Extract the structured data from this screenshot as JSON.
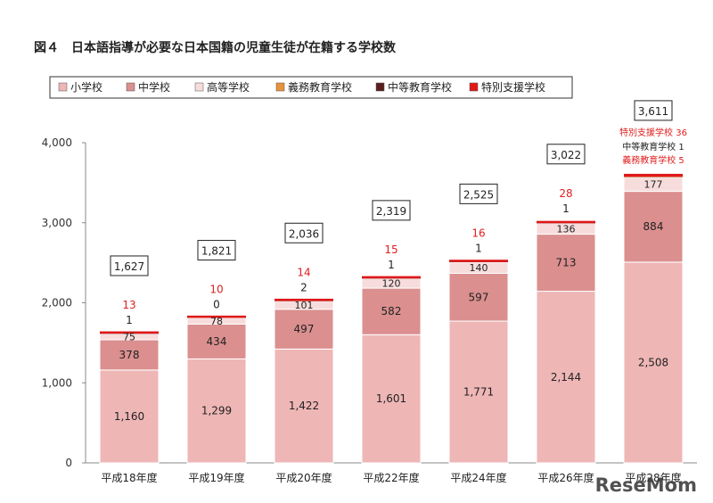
{
  "chart_data": {
    "type": "bar",
    "stacked": true,
    "title": "図４　日本語指導が必要な日本国籍の児童生徒が在籍する学校数",
    "categories": [
      "平成18年度",
      "平成19年度",
      "平成20年度",
      "平成22年度",
      "平成24年度",
      "平成26年度",
      "平成28年度"
    ],
    "series": [
      {
        "name": "小学校",
        "values": [
          1160,
          1299,
          1422,
          1601,
          1771,
          2144,
          2508
        ],
        "color": "#efb6b6"
      },
      {
        "name": "中学校",
        "values": [
          378,
          434,
          497,
          582,
          597,
          713,
          884
        ],
        "color": "#db8f8f"
      },
      {
        "name": "高等学校",
        "values": [
          75,
          78,
          101,
          120,
          140,
          136,
          177
        ],
        "color": "#f7dcdc"
      },
      {
        "name": "義務教育学校",
        "values": [
          0,
          0,
          0,
          0,
          0,
          0,
          5
        ],
        "color": "#e8923c"
      },
      {
        "name": "中等教育学校",
        "values": [
          1,
          0,
          2,
          1,
          1,
          1,
          1
        ],
        "color": "#5a1e1e"
      },
      {
        "name": "特別支援学校",
        "values": [
          13,
          10,
          14,
          15,
          16,
          28,
          36
        ],
        "color": "#e01818"
      }
    ],
    "totals": [
      1627,
      1821,
      2036,
      2319,
      2525,
      3022,
      3611
    ],
    "ylim": [
      0,
      4000
    ],
    "yticks": [
      0,
      1000,
      2000,
      3000,
      4000
    ],
    "ytick_labels": [
      "0",
      "1,000",
      "2,000",
      "3,000",
      "4,000"
    ],
    "grid": false,
    "legend": "top",
    "annotations": {
      "special": {
        "label": "特別支援学校",
        "value": "36"
      },
      "secondary": {
        "label": "中等教育学校",
        "value": "1"
      },
      "compulsory": {
        "label": "義務教育学校",
        "value": "5"
      }
    }
  },
  "watermark": "ReseMom"
}
